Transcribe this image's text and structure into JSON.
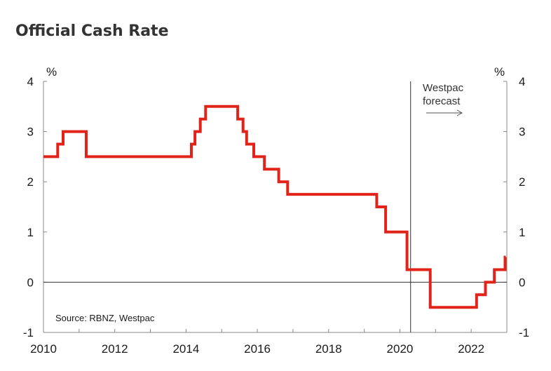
{
  "chart_data": {
    "type": "line",
    "title": "Official Cash Rate",
    "left_unit": "%",
    "right_unit": "%",
    "source": "Source: RBNZ, Westpac",
    "forecast_label_line1": "Westpac",
    "forecast_label_line2": "forecast",
    "forecast_start": 2020.3,
    "x_range": [
      2010,
      2023
    ],
    "ylim": [
      -1,
      4
    ],
    "x_ticks": [
      2010,
      2012,
      2014,
      2016,
      2018,
      2020,
      2022
    ],
    "x_tick_labels": [
      "2010",
      "2012",
      "2014",
      "2016",
      "2018",
      "2020",
      "2022"
    ],
    "y_ticks": [
      -1,
      0,
      1,
      2,
      3,
      4
    ],
    "y_tick_labels": [
      "-1",
      "0",
      "1",
      "2",
      "3",
      "4"
    ],
    "grid": false,
    "line_color": "#e2231a",
    "series": [
      {
        "name": "",
        "step_points": [
          [
            2010.0,
            2.5
          ],
          [
            2010.4,
            2.75
          ],
          [
            2010.55,
            3.0
          ],
          [
            2011.2,
            2.5
          ],
          [
            2014.15,
            2.75
          ],
          [
            2014.25,
            3.0
          ],
          [
            2014.4,
            3.25
          ],
          [
            2014.55,
            3.5
          ],
          [
            2015.45,
            3.25
          ],
          [
            2015.6,
            3.0
          ],
          [
            2015.7,
            2.75
          ],
          [
            2015.9,
            2.5
          ],
          [
            2016.2,
            2.25
          ],
          [
            2016.6,
            2.0
          ],
          [
            2016.85,
            1.75
          ],
          [
            2019.35,
            1.5
          ],
          [
            2019.6,
            1.0
          ],
          [
            2020.2,
            0.25
          ],
          [
            2020.85,
            -0.5
          ],
          [
            2022.15,
            -0.25
          ],
          [
            2022.4,
            0.0
          ],
          [
            2022.65,
            0.25
          ],
          [
            2022.95,
            0.5
          ]
        ],
        "end_x": 2022.97
      }
    ]
  }
}
